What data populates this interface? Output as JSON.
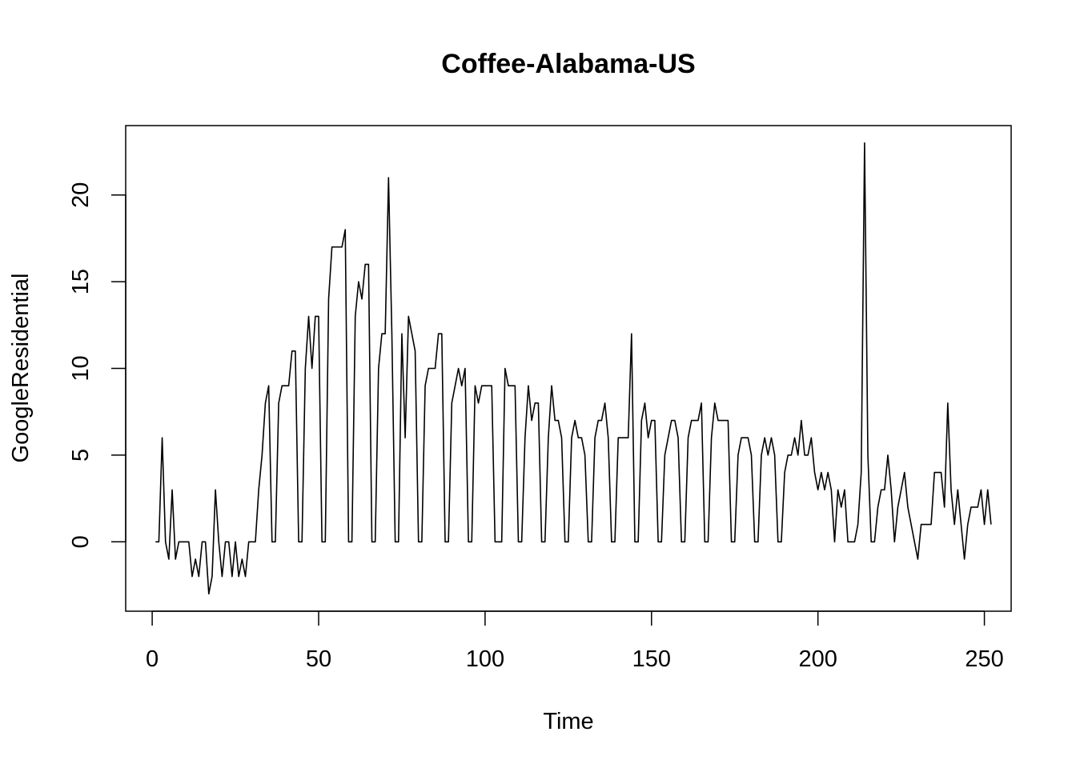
{
  "chart_data": {
    "type": "line",
    "title": "Coffee-Alabama-US",
    "xlabel": "Time",
    "ylabel": "GoogleResidential",
    "xlim": [
      -7.96,
      258.04
    ],
    "ylim": [
      -4,
      24
    ],
    "xticks": [
      0,
      50,
      100,
      150,
      200,
      250
    ],
    "yticks": [
      0,
      5,
      10,
      15,
      20
    ],
    "grid": false,
    "line_color": "#000000",
    "series": [
      {
        "values": [
          0,
          0,
          6,
          0,
          -1,
          3,
          -1,
          0,
          0,
          0,
          0,
          -2,
          -1,
          -2,
          0,
          0,
          -3,
          -2,
          3,
          0,
          -2,
          0,
          0,
          -2,
          0,
          -2,
          -1,
          -2,
          0,
          0,
          0,
          3,
          5,
          8,
          9,
          0,
          0,
          8,
          9,
          9,
          9,
          11,
          11,
          0,
          0,
          10,
          13,
          10,
          13,
          13,
          0,
          0,
          14,
          17,
          17,
          17,
          17,
          18,
          0,
          0,
          13,
          15,
          14,
          16,
          16,
          0,
          0,
          10,
          12,
          12,
          21,
          12,
          0,
          0,
          12,
          6,
          13,
          12,
          11,
          0,
          0,
          9,
          10,
          10,
          10,
          12,
          12,
          0,
          0,
          8,
          9,
          10,
          9,
          10,
          0,
          0,
          9,
          8,
          9,
          9,
          9,
          9,
          0,
          0,
          0,
          10,
          9,
          9,
          9,
          0,
          0,
          6,
          9,
          7,
          8,
          8,
          0,
          0,
          6,
          9,
          7,
          7,
          6,
          0,
          0,
          6,
          7,
          6,
          6,
          5,
          0,
          0,
          6,
          7,
          7,
          8,
          6,
          0,
          0,
          6,
          6,
          6,
          6,
          12,
          0,
          0,
          7,
          8,
          6,
          7,
          7,
          0,
          0,
          5,
          6,
          7,
          7,
          6,
          0,
          0,
          6,
          7,
          7,
          7,
          8,
          0,
          0,
          6,
          8,
          7,
          7,
          7,
          7,
          0,
          0,
          5,
          6,
          6,
          6,
          5,
          0,
          0,
          5,
          6,
          5,
          6,
          5,
          0,
          0,
          4,
          5,
          5,
          6,
          5,
          7,
          5,
          5,
          6,
          4,
          3,
          4,
          3,
          4,
          3,
          0,
          3,
          2,
          3,
          0,
          0,
          0,
          1,
          4,
          23,
          5,
          0,
          0,
          2,
          3,
          3,
          5,
          3,
          0,
          2,
          3,
          4,
          2,
          1,
          0,
          -1,
          1,
          1,
          1,
          1,
          4,
          4,
          4,
          2,
          8,
          3,
          1,
          3,
          1,
          -1,
          1,
          2,
          2,
          2,
          3,
          1,
          3,
          1
        ]
      }
    ]
  }
}
